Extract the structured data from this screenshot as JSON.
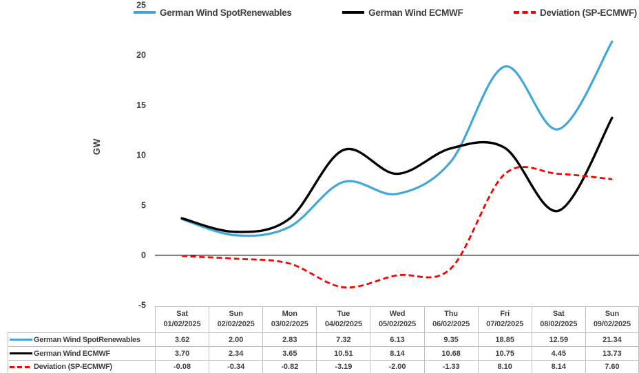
{
  "colors": {
    "spot_blue": "#41A6D9",
    "ecmwf_black": "#000000",
    "deviation_red": "#FF0000",
    "text_dark": "#404040",
    "table_border": "#BFBFBF",
    "axis_line": "#000000"
  },
  "legend": [
    {
      "label": "German Wind SpotRenewables",
      "color": "#41A6D9",
      "style": "solid"
    },
    {
      "label": "German Wind ECMWF",
      "color": "#000000",
      "style": "solid"
    },
    {
      "label": "Deviation (SP-ECMWF)",
      "color": "#FF0000",
      "style": "dashed"
    }
  ],
  "chart_data": {
    "type": "line",
    "smooth": true,
    "title": "",
    "xlabel": "",
    "ylabel": "GW",
    "ylim": [
      -5,
      25
    ],
    "yticks": [
      25,
      20,
      15,
      10,
      5,
      0,
      -5
    ],
    "grid": false,
    "legend_position": "top",
    "categories": [
      {
        "day": "Sat",
        "date": "01/02/2025"
      },
      {
        "day": "Sun",
        "date": "02/02/2025"
      },
      {
        "day": "Mon",
        "date": "03/02/2025"
      },
      {
        "day": "Tue",
        "date": "04/02/2025"
      },
      {
        "day": "Wed",
        "date": "05/02/2025"
      },
      {
        "day": "Thu",
        "date": "06/02/2025"
      },
      {
        "day": "Fri",
        "date": "07/02/2025"
      },
      {
        "day": "Sat",
        "date": "08/02/2025"
      },
      {
        "day": "Sun",
        "date": "09/02/2025"
      }
    ],
    "series": [
      {
        "name": "German Wind SpotRenewables",
        "color": "#41A6D9",
        "dash": false,
        "values": [
          3.62,
          2.0,
          2.83,
          7.32,
          6.13,
          9.35,
          18.85,
          12.59,
          21.34
        ]
      },
      {
        "name": "German Wind ECMWF",
        "color": "#000000",
        "dash": false,
        "values": [
          3.7,
          2.34,
          3.65,
          10.51,
          8.14,
          10.68,
          10.75,
          4.45,
          13.73
        ]
      },
      {
        "name": "Deviation (SP-ECMWF)",
        "color": "#FF0000",
        "dash": true,
        "values": [
          -0.08,
          -0.34,
          -0.82,
          -3.19,
          -2.0,
          -1.33,
          8.1,
          8.14,
          7.6
        ]
      }
    ]
  },
  "table": {
    "row_labels": [
      "German Wind SpotRenewables",
      "German Wind ECMWF",
      "Deviation (SP-ECMWF)"
    ],
    "rows": [
      [
        "3.62",
        "2.00",
        "2.83",
        "7.32",
        "6.13",
        "9.35",
        "18.85",
        "12.59",
        "21.34"
      ],
      [
        "3.70",
        "2.34",
        "3.65",
        "10.51",
        "8.14",
        "10.68",
        "10.75",
        "4.45",
        "13.73"
      ],
      [
        "-0.08",
        "-0.34",
        "-0.82",
        "-3.19",
        "-2.00",
        "-1.33",
        "8.10",
        "8.14",
        "7.60"
      ]
    ]
  }
}
